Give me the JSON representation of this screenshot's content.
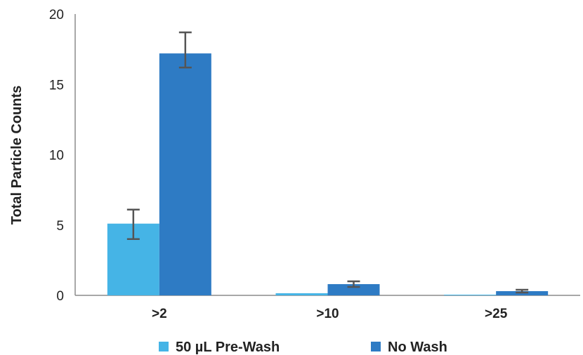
{
  "chart_data": {
    "type": "bar",
    "title": "",
    "xlabel": "",
    "ylabel": "Total Particle Counts",
    "ylim": [
      0,
      20
    ],
    "yticks": [
      0,
      5,
      10,
      15,
      20
    ],
    "grid": false,
    "legend_position": "bottom",
    "categories": [
      ">2",
      ">10",
      ">25"
    ],
    "series": [
      {
        "name": "50 µL Pre-Wash",
        "color": "#45b4e6",
        "values": [
          5.1,
          0.15,
          0.05
        ],
        "error_low": [
          4.0,
          0.15,
          0.05
        ],
        "error_high": [
          6.1,
          0.15,
          0.05
        ]
      },
      {
        "name": "No Wash",
        "color": "#2e7bc4",
        "values": [
          17.2,
          0.8,
          0.3
        ],
        "error_low": [
          16.2,
          0.6,
          0.2
        ],
        "error_high": [
          18.7,
          1.0,
          0.4
        ]
      }
    ],
    "error_bar_color": "#555555"
  }
}
